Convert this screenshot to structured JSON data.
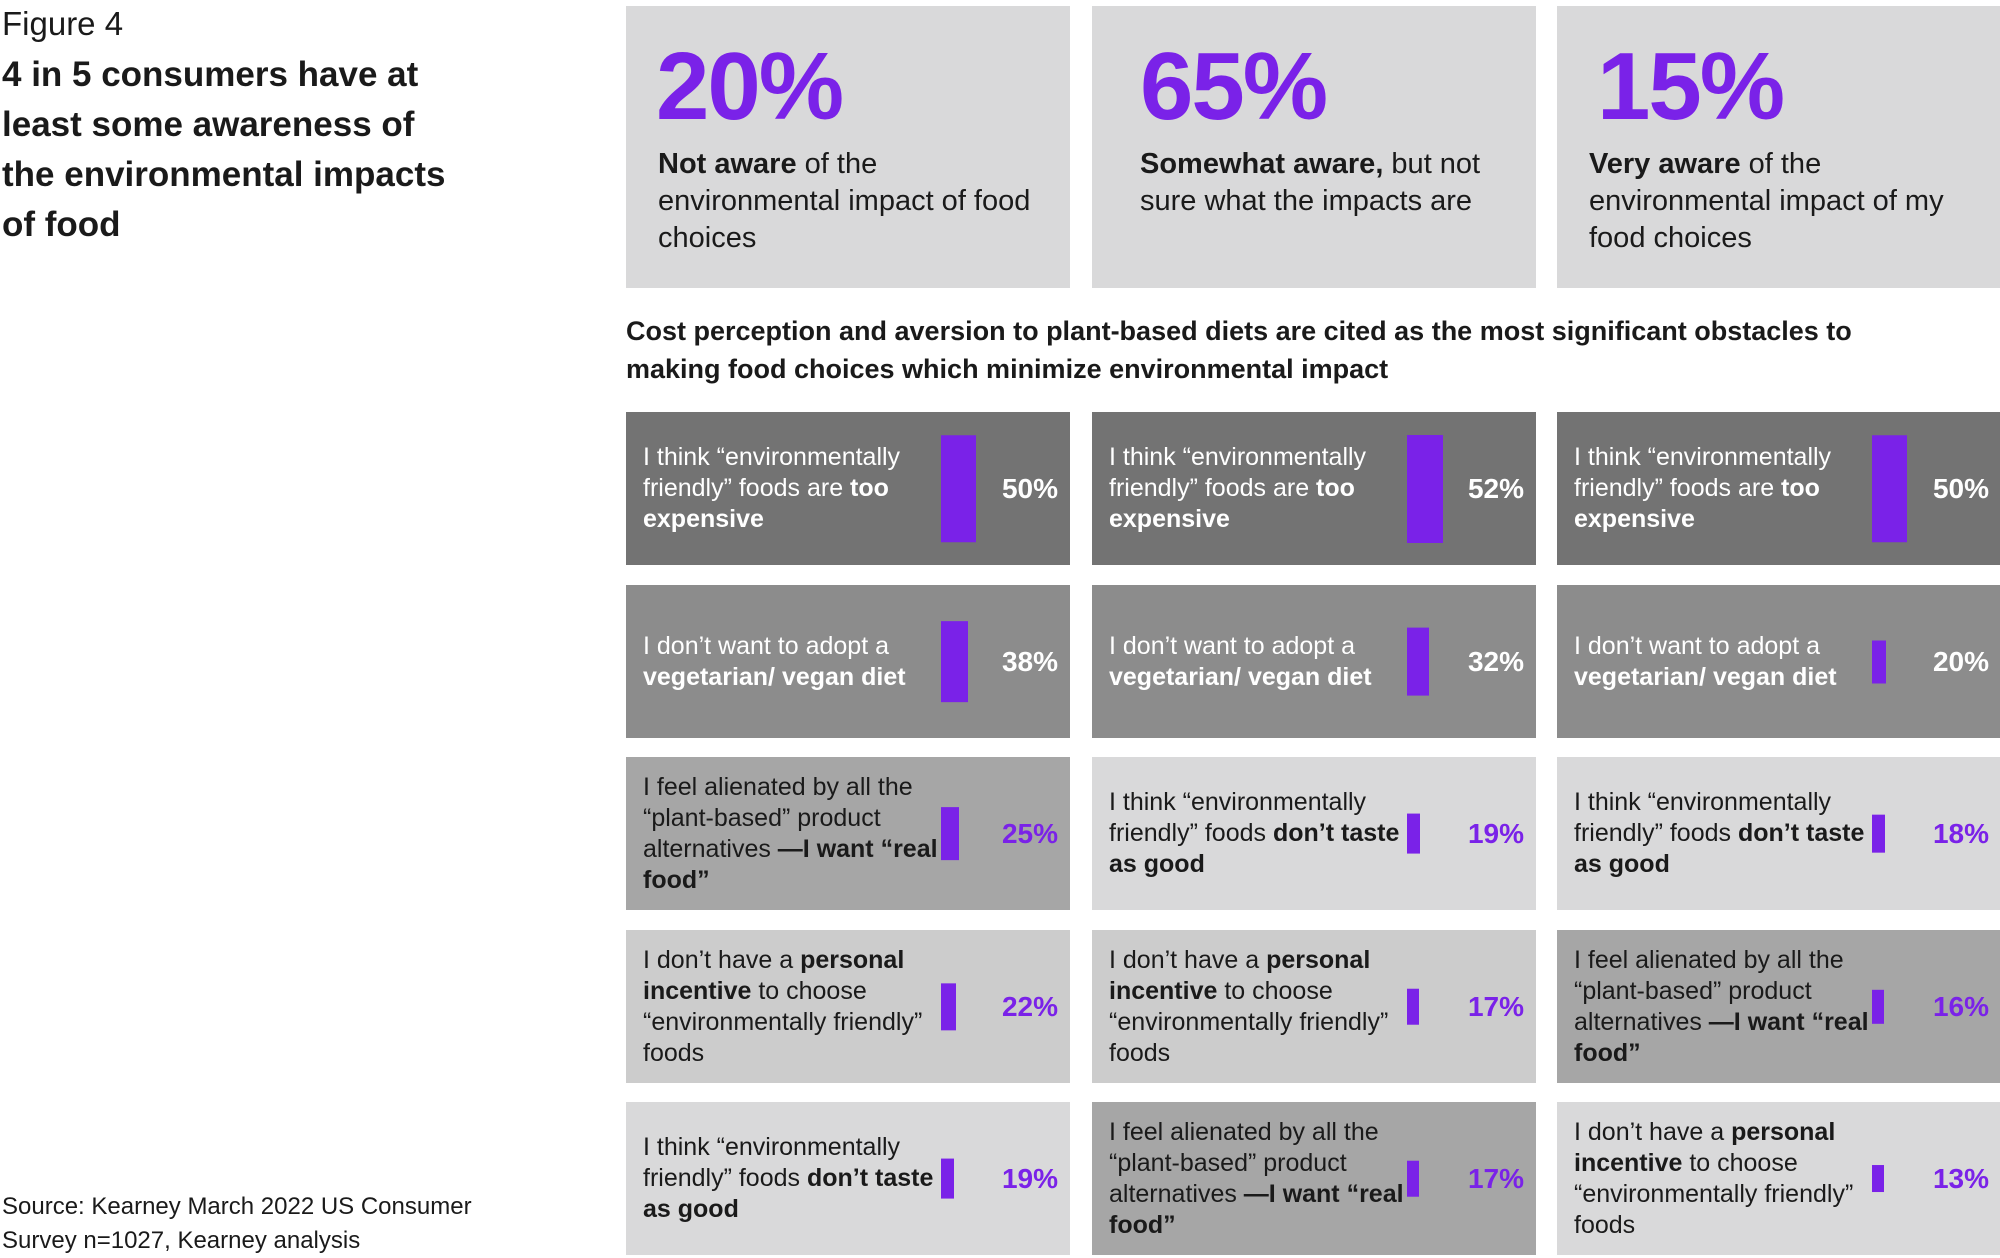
{
  "figure_label": "Figure 4",
  "figure_title": "4 in 5 consumers have at least some awareness of the environmental impacts of food",
  "source": "Source: Kearney March 2022 US Consumer Survey n=1027, Kearney analysis",
  "awareness": [
    {
      "value": "20%",
      "bold": "Not aware",
      "rest": " of the environmental impact of food choices"
    },
    {
      "value": "65%",
      "bold": "Somewhat aware,",
      "rest": " but not sure what the impacts are"
    },
    {
      "value": "15%",
      "bold": "Very aware",
      "rest": " of the environmental impact of my food choices"
    }
  ],
  "obstacles_title": "Cost perception and aversion to plant-based diets are cited as the most significant obstacles to making food choices which minimize environmental impact",
  "colors": {
    "accent": "#7a22e8",
    "stat_bg": "#d9d9da"
  },
  "chart_data": {
    "type": "bar",
    "title": "Cost perception and aversion to plant-based diets are cited as the most significant obstacles to making food choices which minimize environmental impact",
    "orientation": "vertical bars within tiles, grouped by awareness column",
    "columns": [
      {
        "group": "Not aware",
        "items": [
          {
            "pre": "I think “environmentally friendly” foods are ",
            "bold": "too expensive",
            "post": "",
            "value": 50,
            "label": "50%"
          },
          {
            "pre": "I don’t want to adopt a ",
            "bold": "vegetarian/ vegan diet",
            "post": "",
            "value": 38,
            "label": "38%"
          },
          {
            "pre": "I feel alienated by all the “plant-based” product alternatives ",
            "bold": "—I want “real food”",
            "post": "",
            "value": 25,
            "label": "25%"
          },
          {
            "pre": "I don’t have a ",
            "bold": "personal incentive",
            "post": " to choose “environmentally friendly” foods",
            "value": 22,
            "label": "22%"
          },
          {
            "pre": "I think “environmentally friendly” foods ",
            "bold": "don’t taste as good",
            "post": "",
            "value": 19,
            "label": "19%"
          }
        ]
      },
      {
        "group": "Somewhat aware",
        "items": [
          {
            "pre": "I think “environmentally friendly” foods are ",
            "bold": "too expensive",
            "post": "",
            "value": 52,
            "label": "52%"
          },
          {
            "pre": "I don’t want to adopt a ",
            "bold": "vegetarian/ vegan diet",
            "post": "",
            "value": 32,
            "label": "32%"
          },
          {
            "pre": "I think “environmentally friendly” foods ",
            "bold": "don’t taste as good",
            "post": "",
            "value": 19,
            "label": "19%"
          },
          {
            "pre": "I don’t have a ",
            "bold": "personal incentive",
            "post": " to choose “environmentally friendly” foods",
            "value": 17,
            "label": "17%"
          },
          {
            "pre": "I feel alienated by all the “plant-based” product alternatives ",
            "bold": "—I want “real food”",
            "post": "",
            "value": 17,
            "label": "17%"
          }
        ]
      },
      {
        "group": "Very aware",
        "items": [
          {
            "pre": "I think “environmentally friendly” foods are ",
            "bold": "too expensive",
            "post": "",
            "value": 50,
            "label": "50%"
          },
          {
            "pre": "I don’t want to adopt a ",
            "bold": "vegetarian/ vegan diet",
            "post": "",
            "value": 20,
            "label": "20%"
          },
          {
            "pre": "I think “environmentally friendly” foods ",
            "bold": "don’t taste as good",
            "post": "",
            "value": 18,
            "label": "18%"
          },
          {
            "pre": "I feel alienated by all the “plant-based” product alternatives ",
            "bold": "—I want “real food”",
            "post": "",
            "value": 16,
            "label": "16%"
          },
          {
            "pre": "I don’t have a ",
            "bold": "personal incentive",
            "post": " to choose “environmentally friendly” foods",
            "value": 13,
            "label": "13%"
          }
        ]
      }
    ]
  }
}
